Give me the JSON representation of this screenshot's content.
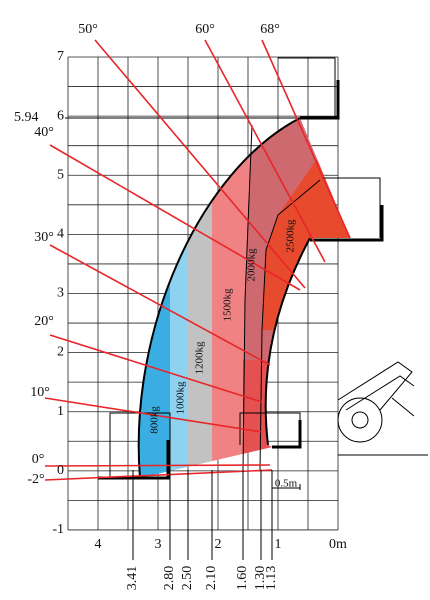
{
  "y_ticks": [
    "7",
    "6",
    "5",
    "4",
    "3",
    "2",
    "1",
    "0",
    "-1"
  ],
  "x_ticks": [
    "4",
    "3",
    "2",
    "1",
    "0m"
  ],
  "height_label": "5.94",
  "angles": [
    "68°",
    "60°",
    "50°",
    "40°",
    "30°",
    "20°",
    "10°",
    "0°",
    "-2°"
  ],
  "loads": [
    "800kg",
    "1000kg",
    "1200kg",
    "1500kg",
    "2000kg",
    "2500kg"
  ],
  "reach": [
    "3.41",
    "2.80",
    "2.50",
    "2.10",
    "1.60",
    "1.30",
    "1.13"
  ],
  "scale_label": "0.5m"
}
